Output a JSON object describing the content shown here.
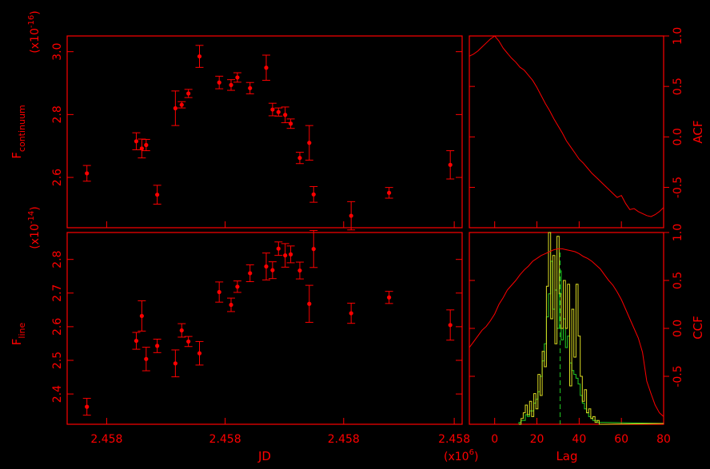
{
  "colors": {
    "background": "#000000",
    "axes": "#ff0000",
    "data": "#ff0000",
    "ccf": "#ff0000",
    "hist_green": "#22cc22",
    "hist_yellow": "#dddd22",
    "lag_marker": "#22cc22"
  },
  "chart_data": [
    {
      "type": "scatter",
      "name": "continuum light curve",
      "title": "",
      "xlabel": "",
      "ylabel": "F",
      "ylabel_sub": "continuum",
      "yscale_label": "(x10",
      "yscale_exp": "-16",
      "yscale_close": ")",
      "xlim": [
        0,
        100
      ],
      "ylim": [
        2.44,
        3.05
      ],
      "yticks": [
        2.6,
        2.8,
        3.0
      ],
      "ytick_labels": [
        "2.6",
        "2.8",
        "3.0"
      ],
      "x": [
        5,
        17.5,
        18.9,
        20,
        22.8,
        27.4,
        29,
        30.7,
        33.5,
        38.5,
        41.5,
        43.1,
        46.3,
        50.4,
        52,
        53.5,
        55.2,
        56.6,
        58.9,
        61.3,
        62.4,
        71.9,
        81.5,
        97
      ],
      "y": [
        2.613,
        2.715,
        2.692,
        2.703,
        2.545,
        2.82,
        2.831,
        2.867,
        2.985,
        2.902,
        2.894,
        2.918,
        2.884,
        2.949,
        2.816,
        2.808,
        2.799,
        2.771,
        2.662,
        2.71,
        2.546,
        2.478,
        2.551,
        2.64
      ],
      "yerr": [
        0.025,
        0.027,
        0.03,
        0.018,
        0.03,
        0.055,
        0.01,
        0.013,
        0.035,
        0.02,
        0.017,
        0.015,
        0.018,
        0.04,
        0.02,
        0.013,
        0.025,
        0.015,
        0.018,
        0.055,
        0.025,
        0.045,
        0.017,
        0.045
      ]
    },
    {
      "type": "line",
      "name": "ACF",
      "ylabel": "ACF",
      "xlim": [
        -12,
        80
      ],
      "ylim": [
        -0.9,
        1.0
      ],
      "yticks": [
        -0.5,
        0.0,
        0.5,
        1.0
      ],
      "ytick_labels": [
        "-0.5",
        "0.0",
        "0.5",
        "1.0"
      ],
      "x": [
        -12,
        -10,
        -8,
        -6,
        -4,
        -2,
        0,
        2,
        4,
        6,
        8,
        10,
        12,
        14,
        16,
        18,
        20,
        22,
        24,
        26,
        28,
        30,
        32,
        34,
        36,
        38,
        40,
        42,
        44,
        46,
        48,
        50,
        52,
        54,
        56,
        58,
        60,
        62,
        64,
        66,
        68,
        70,
        72,
        74,
        76,
        78,
        80
      ],
      "y": [
        0.8,
        0.82,
        0.85,
        0.89,
        0.93,
        0.97,
        1.0,
        0.95,
        0.88,
        0.83,
        0.78,
        0.74,
        0.69,
        0.66,
        0.61,
        0.56,
        0.49,
        0.41,
        0.33,
        0.26,
        0.18,
        0.11,
        0.04,
        -0.04,
        -0.1,
        -0.16,
        -0.22,
        -0.26,
        -0.31,
        -0.36,
        -0.4,
        -0.44,
        -0.48,
        -0.52,
        -0.56,
        -0.6,
        -0.58,
        -0.66,
        -0.72,
        -0.71,
        -0.74,
        -0.76,
        -0.78,
        -0.79,
        -0.77,
        -0.74,
        -0.7
      ]
    },
    {
      "type": "scatter",
      "name": "line light curve",
      "title": "",
      "xlabel": "JD",
      "xscale_label": "(x10",
      "xscale_exp": "6",
      "xscale_close": ")",
      "ylabel": "F",
      "ylabel_sub": "line",
      "yscale_label": "(x10",
      "yscale_exp": "-14",
      "yscale_close": ")",
      "xlim": [
        0,
        100
      ],
      "ylim": [
        2.31,
        2.88
      ],
      "xticks": [
        10,
        40,
        70,
        98
      ],
      "xtick_labels": [
        "2.458",
        "2.458",
        "2.458",
        "2.458"
      ],
      "yticks": [
        2.4,
        2.5,
        2.6,
        2.7,
        2.8
      ],
      "ytick_labels": [
        "2.4",
        "2.5",
        "2.6",
        "2.7",
        "2.8"
      ],
      "x": [
        5,
        17.5,
        18.9,
        20,
        22.8,
        27.4,
        29,
        30.7,
        33.5,
        38.5,
        41.5,
        43.1,
        46.3,
        50.4,
        52,
        53.5,
        55.2,
        56.6,
        58.9,
        61.3,
        62.4,
        71.9,
        81.5,
        97
      ],
      "y": [
        2.362,
        2.558,
        2.632,
        2.504,
        2.543,
        2.491,
        2.589,
        2.556,
        2.521,
        2.703,
        2.665,
        2.719,
        2.759,
        2.779,
        2.768,
        2.832,
        2.812,
        2.815,
        2.767,
        2.668,
        2.831,
        2.64,
        2.687,
        2.605
      ],
      "yerr": [
        0.025,
        0.025,
        0.045,
        0.035,
        0.02,
        0.04,
        0.02,
        0.015,
        0.035,
        0.03,
        0.02,
        0.017,
        0.025,
        0.04,
        0.025,
        0.02,
        0.035,
        0.025,
        0.025,
        0.055,
        0.055,
        0.03,
        0.018,
        0.045
      ]
    },
    {
      "type": "line",
      "name": "CCF",
      "xlabel": "Lag",
      "ylabel": "CCF",
      "xlim": [
        -12,
        80
      ],
      "ylim": [
        -1.0,
        1.0
      ],
      "xticks": [
        0,
        20,
        40,
        60,
        80
      ],
      "xtick_labels": [
        "0",
        "20",
        "40",
        "60",
        "80"
      ],
      "yticks": [
        -0.5,
        0.0,
        0.5,
        1.0
      ],
      "ytick_labels": [
        "-0.5",
        "0.0",
        "0.5",
        "1.0"
      ],
      "x": [
        -12,
        -10,
        -8,
        -6,
        -4,
        -2,
        0,
        2,
        4,
        6,
        8,
        10,
        12,
        14,
        16,
        18,
        20,
        22,
        24,
        26,
        28,
        30,
        32,
        34,
        36,
        38,
        40,
        42,
        44,
        46,
        48,
        50,
        52,
        54,
        56,
        58,
        60,
        62,
        64,
        66,
        68,
        70,
        72,
        74,
        76,
        78,
        80
      ],
      "y": [
        -0.2,
        -0.14,
        -0.08,
        -0.02,
        0.02,
        0.08,
        0.15,
        0.25,
        0.32,
        0.4,
        0.45,
        0.5,
        0.56,
        0.61,
        0.65,
        0.7,
        0.73,
        0.76,
        0.78,
        0.8,
        0.82,
        0.83,
        0.83,
        0.82,
        0.81,
        0.8,
        0.78,
        0.75,
        0.73,
        0.7,
        0.66,
        0.62,
        0.56,
        0.5,
        0.45,
        0.38,
        0.3,
        0.2,
        0.1,
        0.0,
        -0.1,
        -0.25,
        -0.55,
        -0.68,
        -0.8,
        -0.88,
        -0.92
      ],
      "lag_marker_x": 31,
      "histograms": [
        {
          "color_key": "hist_green",
          "bin_width": 1,
          "x": [
            12,
            13,
            14,
            15,
            16,
            17,
            18,
            19,
            20,
            21,
            22,
            23,
            24,
            25,
            26,
            27,
            28,
            29,
            30,
            31,
            32,
            33,
            34,
            35,
            36,
            37,
            38,
            39,
            40,
            41,
            42,
            43,
            44,
            45,
            46,
            47,
            48,
            49,
            50,
            51
          ],
          "y": [
            0.01,
            0.02,
            0.02,
            0.05,
            0.04,
            0.07,
            0.07,
            0.11,
            0.13,
            0.17,
            0.25,
            0.33,
            0.42,
            0.56,
            0.68,
            0.85,
            0.6,
            0.7,
            0.5,
            0.8,
            0.44,
            0.55,
            0.4,
            0.46,
            0.32,
            0.28,
            0.26,
            0.24,
            0.21,
            0.15,
            0.11,
            0.08,
            0.06,
            0.04,
            0.03,
            0.02,
            0.02,
            0.01,
            0.01,
            0.01
          ]
        },
        {
          "color_key": "hist_yellow",
          "bin_width": 1,
          "x": [
            12,
            13,
            14,
            15,
            16,
            17,
            18,
            19,
            20,
            21,
            22,
            23,
            24,
            25,
            26,
            27,
            28,
            29,
            30,
            31,
            32,
            33,
            34,
            35,
            36,
            37,
            38,
            39,
            40,
            41,
            42,
            43,
            44,
            45,
            46,
            47,
            48,
            49,
            50,
            51
          ],
          "y": [
            0.0,
            0.03,
            0.06,
            0.1,
            0.05,
            0.12,
            0.04,
            0.16,
            0.08,
            0.26,
            0.15,
            0.38,
            0.3,
            0.72,
            1.0,
            0.55,
            0.88,
            0.42,
            0.98,
            0.68,
            0.5,
            0.75,
            0.5,
            0.73,
            0.2,
            0.6,
            0.35,
            0.73,
            0.46,
            0.25,
            0.12,
            0.18,
            0.06,
            0.08,
            0.03,
            0.04,
            0.01,
            0.02,
            0.0,
            0.0
          ]
        }
      ]
    }
  ]
}
